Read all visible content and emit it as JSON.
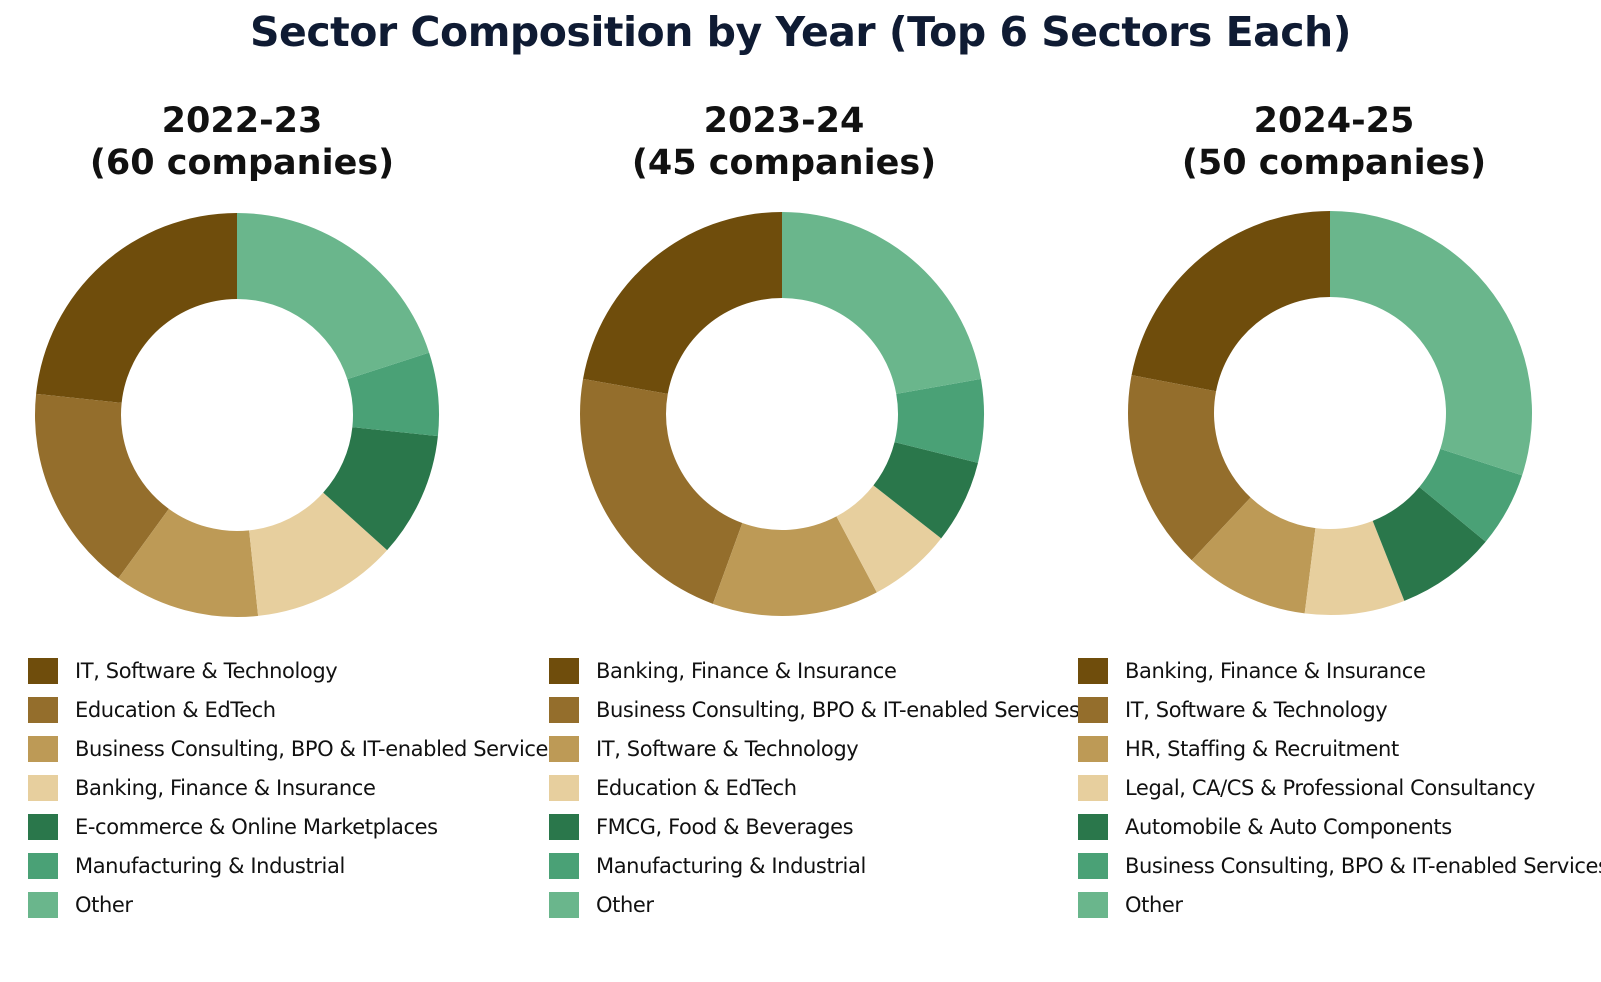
{
  "title": "Sector Composition by Year (Top 6 Sectors Each)",
  "colors": [
    "#6f4d0c",
    "#946e2c",
    "#bd9a56",
    "#e7cf9e",
    "#2a774b",
    "#4aa176",
    "#6ab68c"
  ],
  "chart_data": [
    {
      "type": "pie",
      "donut": true,
      "subtitle_line1": "2022-23",
      "subtitle_line2": "(60 companies)",
      "categories": [
        "IT, Software & Technology",
        "Education & EdTech",
        "Business Consulting, BPO & IT-enabled Services",
        "Banking, Finance & Insurance",
        "E-commerce & Online Marketplaces",
        "Manufacturing & Industrial",
        "Other"
      ],
      "values": [
        14,
        10,
        7,
        7,
        6,
        4,
        12
      ]
    },
    {
      "type": "pie",
      "donut": true,
      "subtitle_line1": "2023-24",
      "subtitle_line2": "(45 companies)",
      "categories": [
        "Banking, Finance & Insurance",
        "Business Consulting, BPO & IT-enabled Services",
        "IT, Software & Technology",
        "Education & EdTech",
        "FMCG, Food & Beverages",
        "Manufacturing & Industrial",
        "Other"
      ],
      "values": [
        10,
        10,
        6,
        3,
        3,
        3,
        10
      ]
    },
    {
      "type": "pie",
      "donut": true,
      "subtitle_line1": "2024-25",
      "subtitle_line2": "(50 companies)",
      "categories": [
        "Banking, Finance & Insurance",
        "IT, Software & Technology",
        "HR, Staffing & Recruitment",
        "Legal, CA/CS & Professional Consultancy",
        "Automobile & Auto Components",
        "Business Consulting, BPO & IT-enabled Services",
        "Other"
      ],
      "values": [
        11,
        8,
        5,
        4,
        4,
        3,
        15
      ]
    }
  ]
}
